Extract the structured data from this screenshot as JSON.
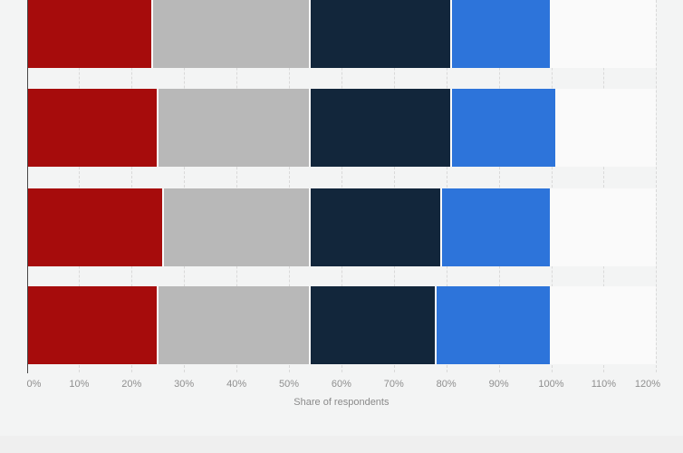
{
  "chart_data": {
    "type": "bar",
    "orientation": "horizontal",
    "stacked": true,
    "title": "",
    "xlabel": "Share of respondents",
    "ylabel": "",
    "xlim": [
      0,
      120
    ],
    "grid": "vertical-dashed",
    "legend": "none",
    "note": "top bar partially cropped by screenshot edge; no category labels visible",
    "x_ticks": [
      {
        "value": 0,
        "label": "0%"
      },
      {
        "value": 10,
        "label": "10%"
      },
      {
        "value": 20,
        "label": "20%"
      },
      {
        "value": 30,
        "label": "30%"
      },
      {
        "value": 40,
        "label": "40%"
      },
      {
        "value": 50,
        "label": "50%"
      },
      {
        "value": 60,
        "label": "60%"
      },
      {
        "value": 70,
        "label": "70%"
      },
      {
        "value": 80,
        "label": "80%"
      },
      {
        "value": 90,
        "label": "90%"
      },
      {
        "value": 100,
        "label": "100%"
      },
      {
        "value": 110,
        "label": "110%"
      },
      {
        "value": 120,
        "label": "120%"
      }
    ],
    "categories": [
      "",
      "",
      "",
      ""
    ],
    "series": [
      {
        "name": "dark-red",
        "color": "#a60c0c",
        "values": [
          24,
          25,
          26,
          25
        ]
      },
      {
        "name": "gray",
        "color": "#b8b8b8",
        "values": [
          30,
          29,
          28,
          29
        ]
      },
      {
        "name": "dark-blue",
        "color": "#12263b",
        "values": [
          27,
          27,
          25,
          24
        ]
      },
      {
        "name": "blue",
        "color": "#2d74da",
        "values": [
          19,
          20,
          21,
          22
        ]
      }
    ],
    "colors": {
      "plot_background": "#f3f4f4",
      "row_band": "#fafafa",
      "gridline": "#d9d9d9",
      "axis_line": "#474747",
      "tick_text": "#8f8f8f",
      "axis_title_text": "#8a8a8a",
      "bottom_strip": "#efefef"
    }
  }
}
